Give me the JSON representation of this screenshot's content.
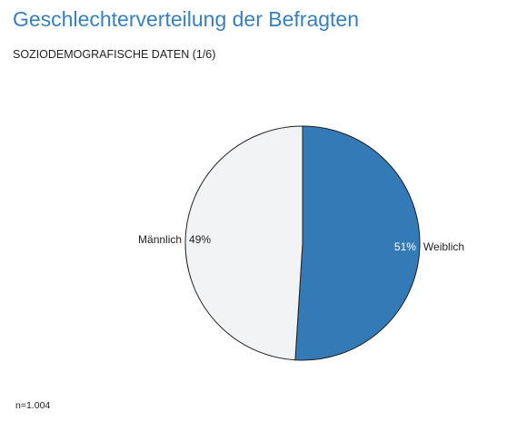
{
  "title": "Geschlechterverteilung der Befragten",
  "subtitle": "SOZIODEMOGRAFISCHE DATEN (1/6)",
  "footnote": "n=1.004",
  "colors": {
    "title": "#3a7fbd",
    "Weiblich": "#337ab7",
    "Männlich": "#f2f3f5",
    "stroke": "#222222",
    "label": "#222222",
    "label_on_dark": "#ffffff"
  },
  "chart_data": {
    "type": "pie",
    "title": "Geschlechterverteilung der Befragten",
    "slices": [
      {
        "label": "Weiblich",
        "value": 51,
        "value_label": "51%"
      },
      {
        "label": "Männlich",
        "value": 49,
        "value_label": "49%"
      }
    ],
    "start": "12 o'clock",
    "direction": "clockwise",
    "legend": "none"
  }
}
